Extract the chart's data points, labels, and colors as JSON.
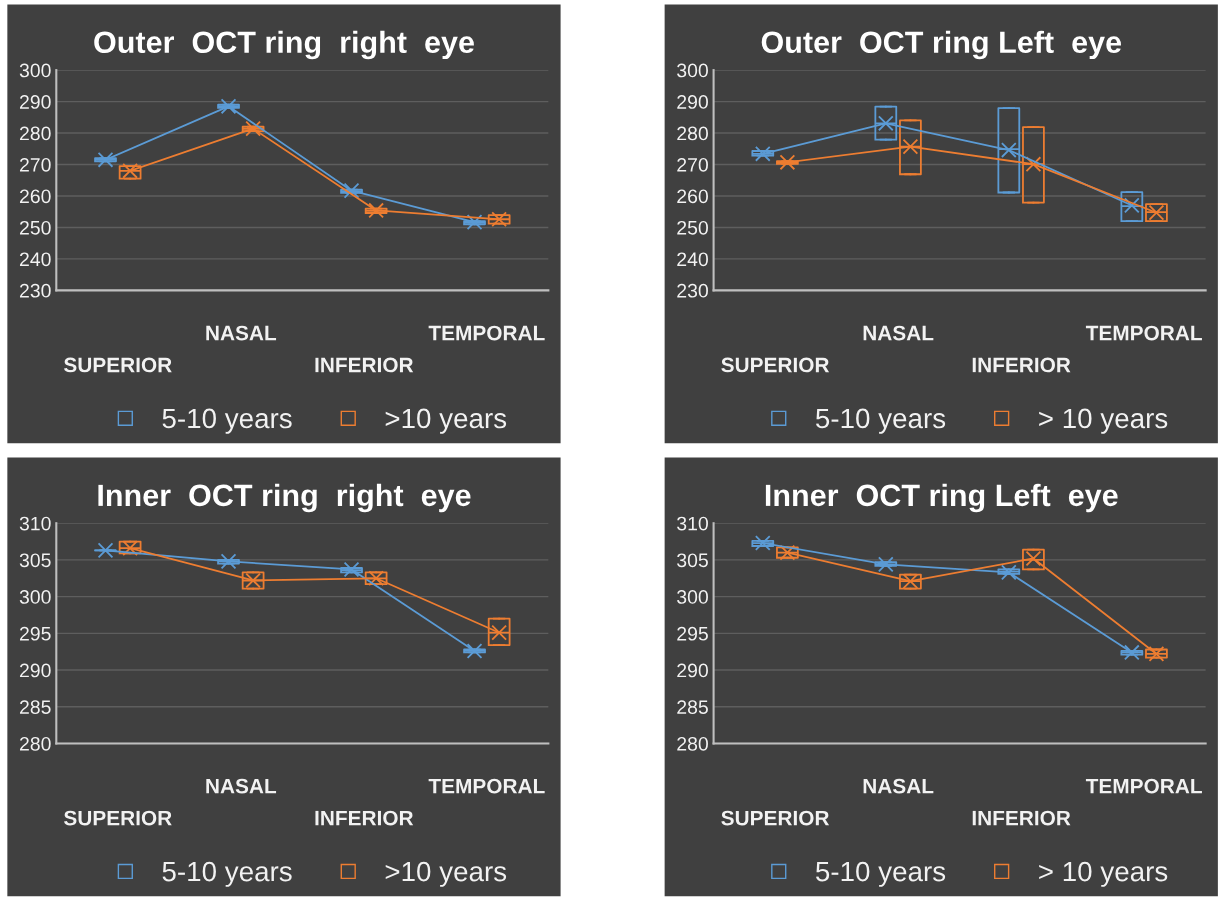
{
  "chart_data": [
    {
      "type": "box",
      "title": "Outer  OCT ring  right  eye",
      "categories": [
        "SUPERIOR",
        "NASAL",
        "INFERIOR",
        "TEMPORAL"
      ],
      "ylim": [
        230,
        300
      ],
      "yticks": [
        230,
        240,
        250,
        260,
        270,
        280,
        290,
        300
      ],
      "grid": "y",
      "legend": "bottom",
      "marker": "cross",
      "line_style": "solid",
      "series": [
        {
          "name": "5-10 years",
          "color": "#5b9bd5",
          "boxes": [
            {
              "low": 271,
              "q1": 271,
              "median": 271.5,
              "q3": 272,
              "high": 272,
              "mean": 271.5
            },
            {
              "low": 288,
              "q1": 288,
              "median": 288.5,
              "q3": 289,
              "high": 289,
              "mean": 288.5
            },
            {
              "low": 261,
              "q1": 261,
              "median": 261.5,
              "q3": 262,
              "high": 262,
              "mean": 261.7
            },
            {
              "low": 251,
              "q1": 251,
              "median": 251.5,
              "q3": 252,
              "high": 252,
              "mean": 251.7
            }
          ]
        },
        {
          "name": ">10 years",
          "color": "#ed7d31",
          "boxes": [
            {
              "low": 265.5,
              "q1": 265.5,
              "median": 268,
              "q3": 269.5,
              "high": 269.5,
              "mean": 268
            },
            {
              "low": 280.6,
              "q1": 280.6,
              "median": 281.3,
              "q3": 282,
              "high": 282,
              "mean": 281.4
            },
            {
              "low": 254.6,
              "q1": 254.6,
              "median": 255.3,
              "q3": 256,
              "high": 256,
              "mean": 255.4
            },
            {
              "low": 251.2,
              "q1": 251.2,
              "median": 252.6,
              "q3": 253.9,
              "high": 253.9,
              "mean": 252.6
            }
          ]
        },
        {
          "type": "line",
          "color": "#5b9bd5",
          "marker": "none",
          "values": [
            271.5,
            288.5,
            261.7,
            251.7
          ]
        },
        {
          "type": "line",
          "color": "#ed7d31",
          "marker": "none",
          "values": [
            268,
            281.4,
            255.4,
            252.6
          ]
        }
      ]
    },
    {
      "type": "box",
      "title": "Outer  OCT ring Left  eye",
      "categories": [
        "SUPERIOR",
        "NASAL",
        "INFERIOR",
        "TEMPORAL"
      ],
      "ylim": [
        230,
        300
      ],
      "yticks": [
        230,
        240,
        250,
        260,
        270,
        280,
        290,
        300
      ],
      "grid": "y",
      "legend": "bottom",
      "marker": "cross",
      "line_style": "solid",
      "series": [
        {
          "name": "5-10 years",
          "color": "#5b9bd5",
          "boxes": [
            {
              "low": 272.8,
              "q1": 272.8,
              "median": 273.4,
              "q3": 274.3,
              "high": 274.3,
              "mean": 273.4
            },
            {
              "low": 277.9,
              "q1": 277.9,
              "median": 283.1,
              "q3": 288.4,
              "high": 288.4,
              "mean": 283.1
            },
            {
              "low": 261.1,
              "q1": 261.1,
              "median": 274.9,
              "q3": 287.9,
              "high": 287.9,
              "mean": 274.6
            },
            {
              "low": 252,
              "q1": 252,
              "median": 256.8,
              "q3": 261.2,
              "high": 261.2,
              "mean": 257
            }
          ]
        },
        {
          "name": "> 10 years",
          "color": "#ed7d31",
          "boxes": [
            {
              "low": 270.2,
              "q1": 270.2,
              "median": 270.7,
              "q3": 271.1,
              "high": 271.1,
              "mean": 270.7
            },
            {
              "low": 266.9,
              "q1": 266.9,
              "median": 275.7,
              "q3": 284,
              "high": 284,
              "mean": 275.7
            },
            {
              "low": 257.9,
              "q1": 257.9,
              "median": 270.1,
              "q3": 281.9,
              "high": 281.9,
              "mean": 270.1
            },
            {
              "low": 252,
              "q1": 252,
              "median": 254.9,
              "q3": 257.4,
              "high": 257.4,
              "mean": 254.7
            }
          ]
        },
        {
          "type": "line",
          "color": "#5b9bd5",
          "marker": "none",
          "values": [
            273.4,
            283.1,
            274.6,
            257
          ]
        },
        {
          "type": "line",
          "color": "#ed7d31",
          "marker": "none",
          "values": [
            270.7,
            275.7,
            270.1,
            254.7
          ]
        }
      ]
    },
    {
      "type": "box",
      "title": "Inner  OCT ring  right  eye",
      "categories": [
        "SUPERIOR",
        "NASAL",
        "INFERIOR",
        "TEMPORAL"
      ],
      "ylim": [
        280,
        310
      ],
      "yticks": [
        280,
        285,
        290,
        295,
        300,
        305,
        310
      ],
      "grid": "y",
      "legend": "bottom",
      "marker": "cross",
      "line_style": "solid",
      "series": [
        {
          "name": "5-10 years",
          "color": "#5b9bd5",
          "boxes": [
            {
              "low": 306.3,
              "q1": 306.3,
              "median": 306.3,
              "q3": 306.3,
              "high": 306.3,
              "mean": 306.3
            },
            {
              "low": 304.5,
              "q1": 304.5,
              "median": 304.8,
              "q3": 305,
              "high": 305,
              "mean": 304.8
            },
            {
              "low": 303.3,
              "q1": 303.3,
              "median": 303.6,
              "q3": 303.9,
              "high": 303.9,
              "mean": 303.7
            },
            {
              "low": 292.4,
              "q1": 292.4,
              "median": 292.6,
              "q3": 292.8,
              "high": 292.8,
              "mean": 292.6
            }
          ]
        },
        {
          "name": ">10 years",
          "color": "#ed7d31",
          "boxes": [
            {
              "low": 305.9,
              "q1": 305.9,
              "median": 306.6,
              "q3": 307.5,
              "high": 307.5,
              "mean": 306.6
            },
            {
              "low": 301.1,
              "q1": 301.1,
              "median": 302.2,
              "q3": 303.3,
              "high": 303.3,
              "mean": 302.2
            },
            {
              "low": 301.7,
              "q1": 301.7,
              "median": 302.5,
              "q3": 303.3,
              "high": 303.3,
              "mean": 302.5
            },
            {
              "low": 293.4,
              "q1": 293.4,
              "median": 295.1,
              "q3": 297,
              "high": 297,
              "mean": 295.1
            }
          ]
        },
        {
          "type": "line",
          "color": "#5b9bd5",
          "marker": "none",
          "values": [
            306.3,
            304.8,
            303.7,
            292.6
          ]
        },
        {
          "type": "line",
          "color": "#ed7d31",
          "marker": "none",
          "values": [
            306.6,
            302.2,
            302.5,
            295.1
          ]
        }
      ]
    },
    {
      "type": "box",
      "title": "Inner  OCT ring Left  eye",
      "categories": [
        "SUPERIOR",
        "NASAL",
        "INFERIOR",
        "TEMPORAL"
      ],
      "ylim": [
        280,
        310
      ],
      "yticks": [
        280,
        285,
        290,
        295,
        300,
        305,
        310
      ],
      "grid": "y",
      "legend": "bottom",
      "marker": "cross",
      "line_style": "solid",
      "series": [
        {
          "name": "5-10 years",
          "color": "#5b9bd5",
          "boxes": [
            {
              "low": 306.9,
              "q1": 306.9,
              "median": 307.3,
              "q3": 307.6,
              "high": 307.6,
              "mean": 307.3
            },
            {
              "low": 304.2,
              "q1": 304.2,
              "median": 304.4,
              "q3": 304.7,
              "high": 304.7,
              "mean": 304.4
            },
            {
              "low": 303.1,
              "q1": 303.1,
              "median": 303.4,
              "q3": 303.7,
              "high": 303.7,
              "mean": 303.3
            },
            {
              "low": 292.1,
              "q1": 292.1,
              "median": 292.4,
              "q3": 292.6,
              "high": 292.6,
              "mean": 292.4
            }
          ]
        },
        {
          "name": "> 10 years",
          "color": "#ed7d31",
          "boxes": [
            {
              "low": 305.3,
              "q1": 305.3,
              "median": 306,
              "q3": 306.7,
              "high": 306.7,
              "mean": 306
            },
            {
              "low": 301.1,
              "q1": 301.1,
              "median": 302.1,
              "q3": 303,
              "high": 303,
              "mean": 302.1
            },
            {
              "low": 303.7,
              "q1": 303.7,
              "median": 305,
              "q3": 306.4,
              "high": 306.4,
              "mean": 305.2
            },
            {
              "low": 291.7,
              "q1": 291.7,
              "median": 292.2,
              "q3": 292.8,
              "high": 292.8,
              "mean": 292.2
            }
          ]
        },
        {
          "type": "line",
          "color": "#5b9bd5",
          "marker": "none",
          "values": [
            307.3,
            304.4,
            303.3,
            292.4
          ]
        },
        {
          "type": "line",
          "color": "#ed7d31",
          "marker": "none",
          "values": [
            306,
            302.1,
            305.2,
            292.2
          ]
        }
      ]
    }
  ]
}
